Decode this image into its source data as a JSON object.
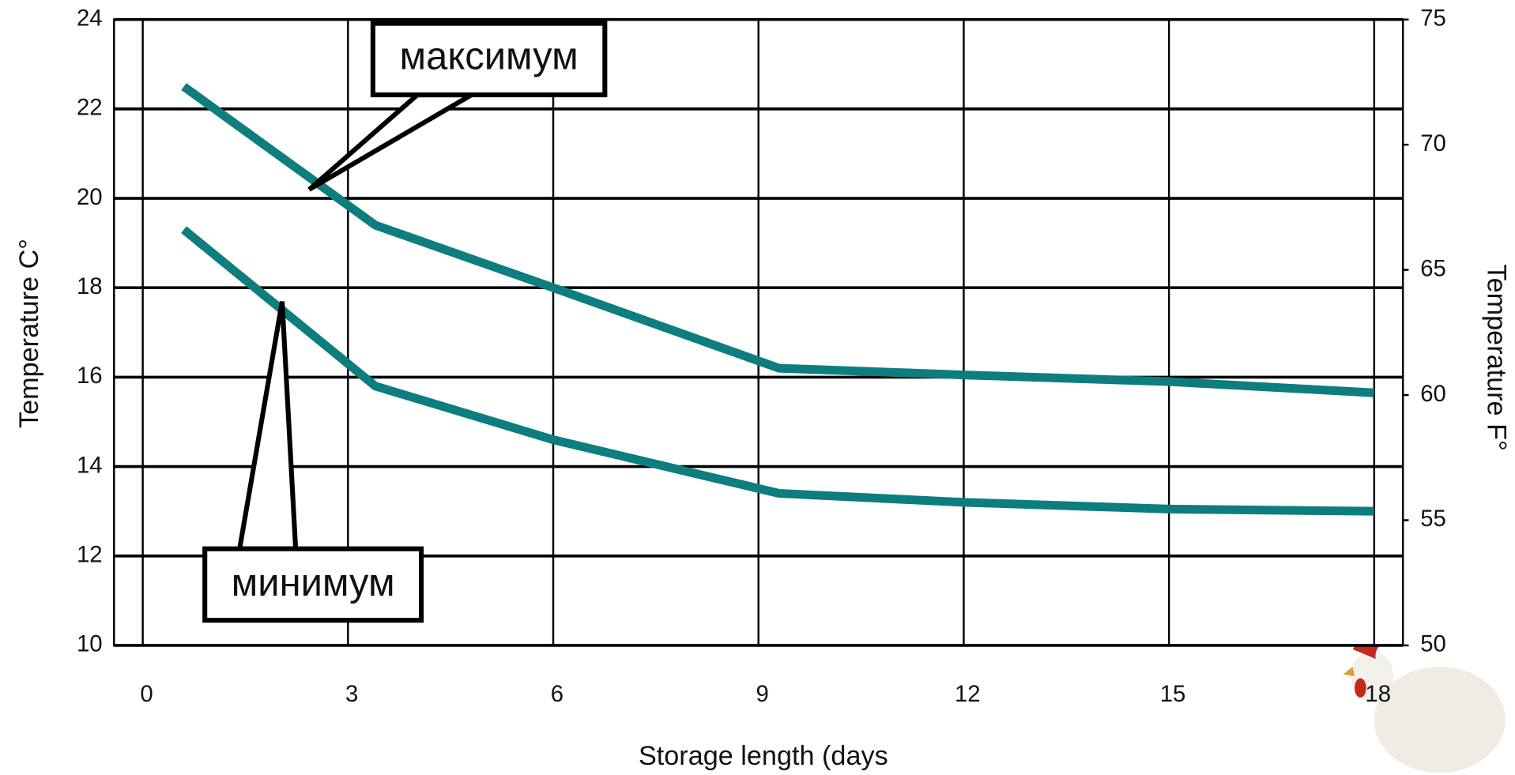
{
  "chart_data": {
    "type": "line",
    "x_label": "Storage length (days",
    "y_label": "Temperature C°",
    "y2_label": "Temperature F°",
    "x": [
      0.6,
      3.4,
      6,
      9.3,
      12,
      15,
      18
    ],
    "series": [
      {
        "name": "максимум",
        "color": "#0d7d7d",
        "values": [
          22.5,
          19.4,
          18.0,
          16.2,
          16.05,
          15.9,
          15.65
        ]
      },
      {
        "name": "минимум",
        "color": "#0d7d7d",
        "values": [
          19.3,
          15.8,
          14.6,
          13.4,
          13.2,
          13.05,
          13.0
        ]
      }
    ],
    "xlim": [
      -0.42,
      18.42
    ],
    "xticks": [
      0,
      3,
      6,
      9,
      12,
      15,
      18
    ],
    "ylim": [
      10,
      24
    ],
    "yticks": [
      10,
      12,
      14,
      16,
      18,
      20,
      22,
      24
    ],
    "y2lim": [
      50,
      75
    ],
    "y2ticks": [
      50,
      55,
      60,
      65,
      70,
      75
    ],
    "grid": true
  }
}
